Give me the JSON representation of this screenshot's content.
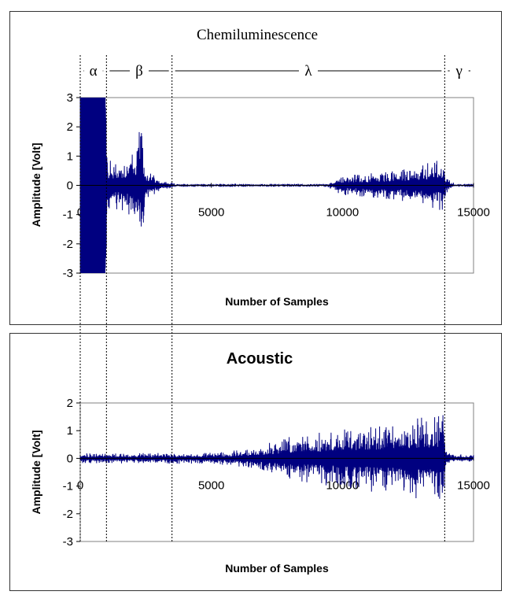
{
  "chart_data": [
    {
      "type": "line",
      "title": "Chemiluminescence",
      "xlabel": "Number of Samples",
      "ylabel": "Amplitude [Volt]",
      "xlim": [
        0,
        15000
      ],
      "ylim": [
        -3,
        3
      ],
      "xticks": [
        0,
        5000,
        10000,
        15000
      ],
      "yticks": [
        3,
        2,
        1,
        0,
        -1,
        -2,
        -3
      ],
      "line_color": "#000080",
      "regions": [
        {
          "label": "α",
          "start": 0,
          "end": 1000
        },
        {
          "label": "β",
          "start": 1000,
          "end": 3500
        },
        {
          "label": "λ",
          "start": 3500,
          "end": 13900
        },
        {
          "label": "γ",
          "start": 13900,
          "end": 15000
        }
      ],
      "envelope": [
        {
          "x": 0,
          "amp": 3
        },
        {
          "x": 950,
          "amp": 3
        },
        {
          "x": 1050,
          "amp": 0.9
        },
        {
          "x": 1500,
          "amp": 0.8
        },
        {
          "x": 2100,
          "amp": 1.3
        },
        {
          "x": 2300,
          "amp": 2.1
        },
        {
          "x": 2500,
          "amp": 0.6
        },
        {
          "x": 3000,
          "amp": 0.2
        },
        {
          "x": 3700,
          "amp": 0.04
        },
        {
          "x": 9400,
          "amp": 0.04
        },
        {
          "x": 10000,
          "amp": 0.35
        },
        {
          "x": 11500,
          "amp": 0.45
        },
        {
          "x": 12500,
          "amp": 0.6
        },
        {
          "x": 13500,
          "amp": 0.85
        },
        {
          "x": 13850,
          "amp": 1.05
        },
        {
          "x": 13950,
          "amp": 0.3
        },
        {
          "x": 14300,
          "amp": 0.05
        },
        {
          "x": 15000,
          "amp": 0.03
        }
      ]
    },
    {
      "type": "line",
      "title": "Acoustic",
      "xlabel": "Number of Samples",
      "ylabel": "Amplitude [Volt]",
      "xlim": [
        0,
        15000
      ],
      "ylim": [
        -3,
        2
      ],
      "xticks": [
        0,
        5000,
        10000,
        15000
      ],
      "yticks": [
        2,
        1,
        0,
        -1,
        -2,
        -3
      ],
      "line_color": "#000080",
      "envelope": [
        {
          "x": 0,
          "amp": 0.18
        },
        {
          "x": 5000,
          "amp": 0.2
        },
        {
          "x": 6500,
          "amp": 0.35
        },
        {
          "x": 8000,
          "amp": 0.8
        },
        {
          "x": 9500,
          "amp": 1.0
        },
        {
          "x": 11000,
          "amp": 1.2
        },
        {
          "x": 12500,
          "amp": 1.4
        },
        {
          "x": 13500,
          "amp": 1.6
        },
        {
          "x": 13850,
          "amp": 1.75
        },
        {
          "x": 13950,
          "amp": 0.3
        },
        {
          "x": 14300,
          "amp": 0.15
        },
        {
          "x": 15000,
          "amp": 0.13
        }
      ]
    }
  ]
}
